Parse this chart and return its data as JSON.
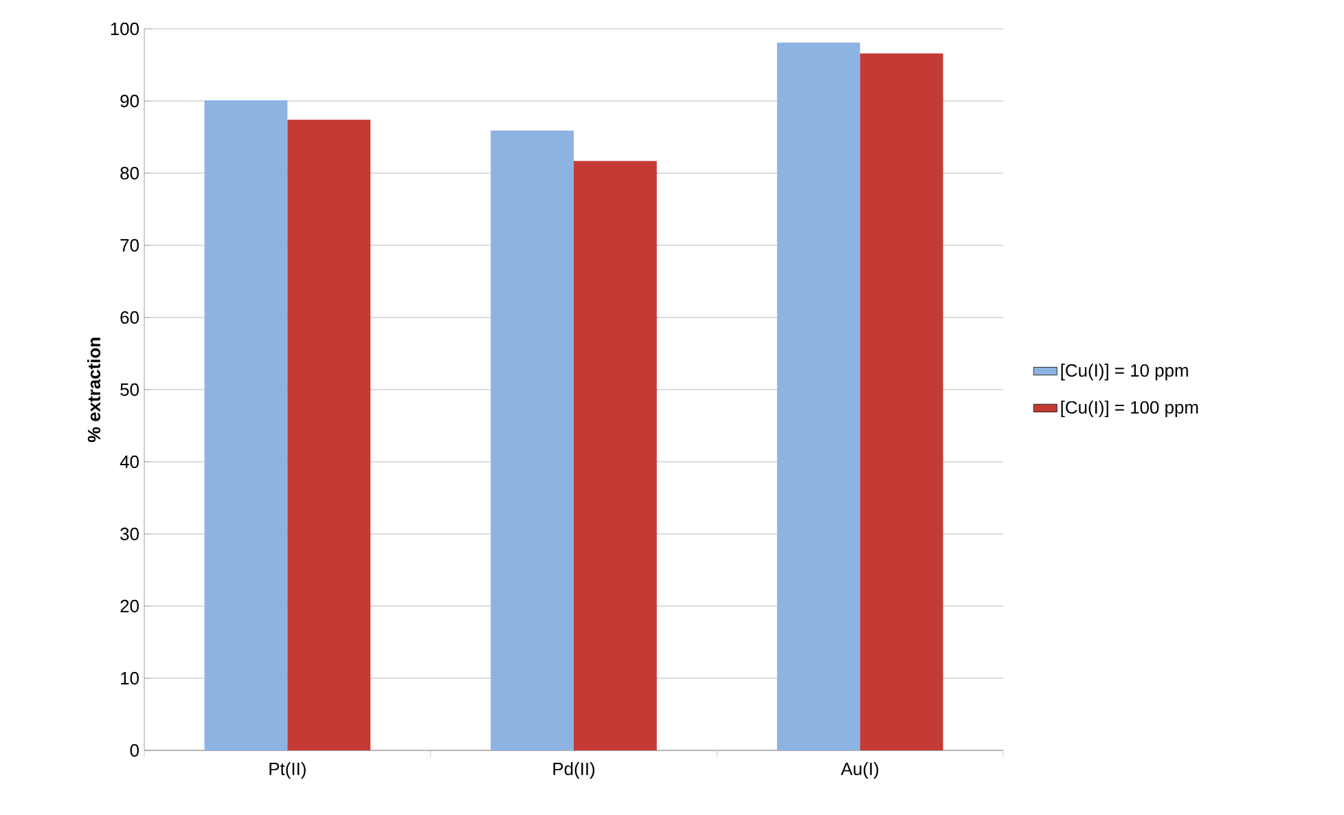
{
  "chart_data": {
    "type": "bar",
    "ylabel": "% extraction",
    "categories": [
      "Pt(II)",
      "Pd(II)",
      "Au(I)"
    ],
    "series": [
      {
        "name": "[Cu(I)] = 10 ppm",
        "color": "#8db3e2",
        "values": [
          90.1,
          85.9,
          98.1
        ]
      },
      {
        "name": "[Cu(I)] = 100 ppm",
        "color": "#c43a35",
        "values": [
          87.4,
          81.7,
          96.6
        ]
      }
    ],
    "ylim": [
      0,
      100
    ],
    "yticks": [
      0,
      10,
      20,
      30,
      40,
      50,
      60,
      70,
      80,
      90,
      100
    ],
    "grid": "y",
    "legend": "right"
  }
}
